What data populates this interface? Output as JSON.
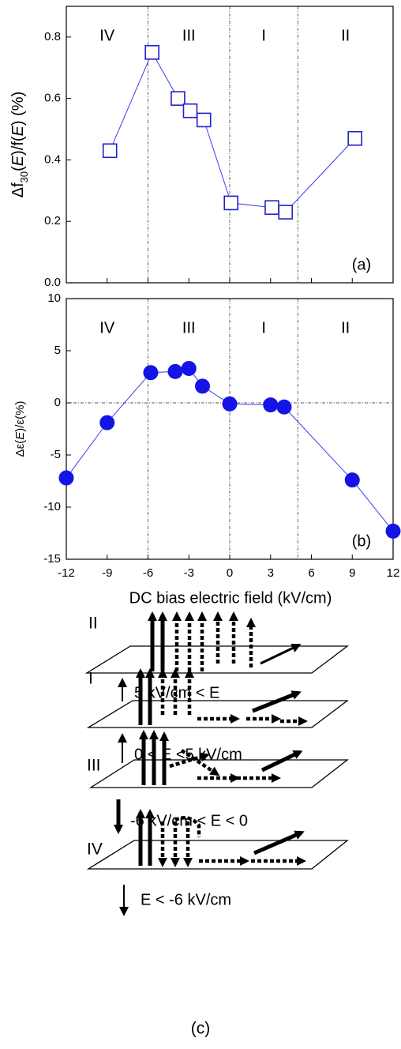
{
  "chart_data": [
    {
      "type": "scatter",
      "connected": true,
      "marker": "square-open",
      "color": "#1f1fd0",
      "line_color": "#3b3bf0",
      "x": [
        -8.8,
        -5.7,
        -3.8,
        -2.9,
        -1.9,
        0.1,
        3.1,
        4.1,
        9.2
      ],
      "values": [
        0.43,
        0.75,
        0.6,
        0.56,
        0.53,
        0.26,
        0.245,
        0.23,
        0.47
      ],
      "xlim": [
        -12,
        12
      ],
      "ylim": [
        0,
        0.9
      ],
      "xticks": [
        -12,
        -9,
        -6,
        -3,
        0,
        3,
        6,
        9,
        12
      ],
      "show_xtick_labels": false,
      "yticks": [
        {
          "value": 0,
          "label": "0.0"
        },
        0.2,
        0.4,
        0.6,
        0.8
      ],
      "vlines": [
        -6,
        0,
        5
      ],
      "hlines": [],
      "region_labels": [
        "IV",
        "III",
        "I",
        "II"
      ],
      "panel_label": "(a)",
      "y_label": [
        "Δf",
        "30",
        "(",
        "E",
        ")/f(",
        "E",
        ") (%)"
      ]
    },
    {
      "type": "scatter",
      "connected": true,
      "marker": "circle",
      "color": "#1414e6",
      "line_color": "#3b3bf0",
      "x": [
        -12,
        -9,
        -5.8,
        -4,
        -3,
        -2,
        0,
        3,
        4,
        9,
        12
      ],
      "values": [
        -7.2,
        -1.9,
        2.9,
        3.0,
        3.3,
        1.6,
        -0.1,
        -0.2,
        -0.4,
        -7.4,
        -12.3
      ],
      "xlim": [
        -12,
        12
      ],
      "ylim": [
        -15,
        10
      ],
      "xticks": [
        -12,
        -9,
        -6,
        -3,
        0,
        3,
        6,
        9,
        12
      ],
      "show_xtick_labels": true,
      "yticks": [
        -15,
        -10,
        -5,
        0,
        5,
        10
      ],
      "vlines": [
        -6,
        0,
        5
      ],
      "hlines": [
        0
      ],
      "region_labels": [
        "IV",
        "III",
        "I",
        "II"
      ],
      "panel_label": "(b)",
      "y_label": [
        "Δε(",
        "E",
        ")/ε(%)"
      ],
      "x_label": "DC bias electric field (kV/cm)"
    }
  ],
  "diagram": {
    "panels": [
      {
        "label": "II",
        "condition": "5 kV/cm < E"
      },
      {
        "label": "I",
        "condition": "0 < E <5 kV/cm"
      },
      {
        "label": "III",
        "condition": "-6 kV/cm < E < 0"
      },
      {
        "label": "IV",
        "condition": "E < -6 kV/cm"
      }
    ],
    "caption": "(c)"
  }
}
